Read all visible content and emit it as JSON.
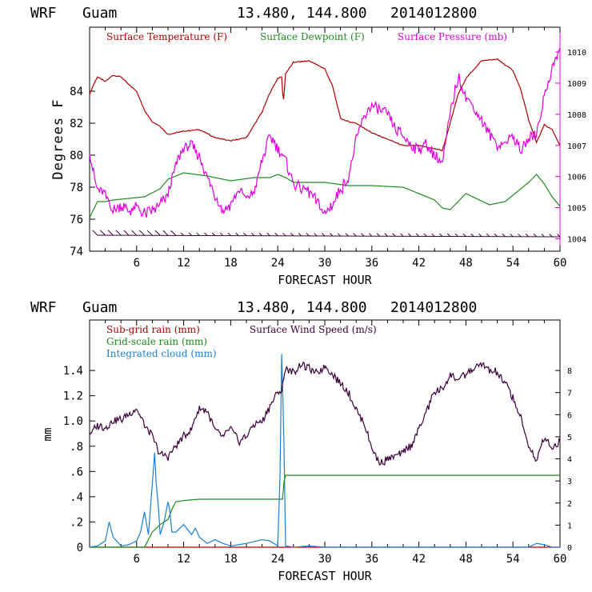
{
  "header": {
    "model": "WRF",
    "location": "Guam",
    "coords": "13.480, 144.800",
    "init_time": "2014012800"
  },
  "colors": {
    "temperature": "#b00000",
    "dewpoint": "#1e8a1e",
    "pressure": "#e000e0",
    "wind": "#3a003a",
    "subgrid_rain": "#b00000",
    "gridscale_rain": "#1e8a1e",
    "cloud": "#1a7fd0"
  },
  "chart_data": [
    {
      "type": "line",
      "xlabel": "FORECAST HOUR",
      "ylabel": "Degrees F",
      "xlim": [
        0,
        60
      ],
      "ylim": [
        74,
        88
      ],
      "y2lim": [
        1003.6,
        1010.8
      ],
      "xticks": [
        "6",
        "12",
        "18",
        "24",
        "30",
        "36",
        "42",
        "48",
        "54",
        "60"
      ],
      "yticks": [
        "74",
        "76",
        "78",
        "80",
        "82",
        "84"
      ],
      "y2ticks": [
        "1004",
        "1005",
        "1006",
        "1007",
        "1008",
        "1009",
        "1010"
      ],
      "series": [
        {
          "name": "Surface Temperature (F)",
          "axis": "left",
          "x": [
            0,
            0.5,
            1,
            2,
            3,
            4,
            5,
            6,
            7,
            8,
            9,
            10,
            12,
            14,
            16,
            18,
            20,
            22,
            23,
            24,
            24.5,
            24.7,
            25,
            26,
            28,
            30,
            31,
            32,
            33,
            34,
            36,
            38,
            40,
            42,
            44,
            45,
            46,
            47,
            48,
            50,
            52,
            54,
            55,
            56,
            57,
            58,
            59,
            60
          ],
          "values": [
            83.8,
            84.4,
            84.9,
            84.6,
            85.0,
            84.9,
            84.4,
            84.0,
            82.8,
            82.1,
            81.8,
            81.3,
            81.5,
            81.6,
            81.1,
            80.9,
            81.1,
            82.7,
            83.9,
            84.8,
            84.9,
            83.2,
            85.1,
            85.8,
            85.9,
            85.4,
            84.3,
            82.3,
            82.1,
            82.0,
            81.4,
            81.0,
            80.6,
            80.6,
            80.4,
            80.3,
            82.0,
            83.8,
            84.8,
            85.9,
            86.0,
            85.3,
            84.1,
            82.2,
            80.8,
            81.9,
            81.6,
            80.6
          ]
        },
        {
          "name": "Surface Dewpoint (F)",
          "axis": "left",
          "x": [
            0,
            0.5,
            1,
            2,
            3,
            5,
            7,
            9,
            10,
            12,
            15,
            18,
            21,
            23,
            24,
            25,
            26,
            28,
            30,
            33,
            36,
            40,
            42,
            44,
            45,
            46,
            48,
            51,
            53,
            56,
            57,
            58,
            59,
            60
          ],
          "values": [
            76.1,
            76.6,
            77.1,
            77.1,
            77.2,
            77.3,
            77.4,
            77.9,
            78.5,
            78.9,
            78.7,
            78.4,
            78.6,
            78.6,
            78.8,
            78.6,
            78.3,
            78.3,
            78.3,
            78.1,
            78.1,
            78.0,
            77.6,
            77.2,
            76.7,
            76.6,
            77.6,
            76.9,
            77.1,
            78.3,
            78.8,
            78.2,
            77.4,
            76.8
          ]
        },
        {
          "name": "Surface Pressure (mb)",
          "axis": "right",
          "x": [
            0,
            0.5,
            1,
            2,
            3,
            4,
            5,
            6,
            7,
            8,
            9,
            10,
            11,
            12,
            13,
            14,
            15,
            16,
            17,
            18,
            19,
            20,
            21,
            22,
            23,
            24,
            25,
            26,
            27,
            28,
            29,
            30,
            31,
            32,
            33,
            34,
            35,
            36,
            37,
            38,
            39,
            40,
            41,
            42,
            43,
            44,
            45,
            46,
            47,
            48,
            49,
            50,
            51,
            52,
            53,
            54,
            55,
            56,
            57,
            58,
            59,
            60
          ],
          "values": [
            1006.8,
            1006.1,
            1005.6,
            1005.4,
            1004.9,
            1005.1,
            1004.9,
            1005.0,
            1004.8,
            1004.9,
            1005.1,
            1005.4,
            1006.4,
            1006.9,
            1007.0,
            1006.6,
            1006.0,
            1005.4,
            1004.9,
            1005.1,
            1005.6,
            1005.3,
            1005.5,
            1006.5,
            1007.3,
            1006.9,
            1006.5,
            1005.8,
            1005.6,
            1005.5,
            1005.2,
            1004.8,
            1005.1,
            1005.6,
            1005.9,
            1007.2,
            1007.9,
            1008.3,
            1008.1,
            1008.0,
            1007.5,
            1007.3,
            1007.0,
            1006.9,
            1007.0,
            1006.7,
            1006.4,
            1008.0,
            1009.2,
            1008.6,
            1008.2,
            1007.8,
            1007.4,
            1007.0,
            1007.1,
            1007.3,
            1006.8,
            1007.2,
            1007.4,
            1008.6,
            1009.5,
            1010.1
          ]
        },
        {
          "name": "Surface Wind Barbs",
          "axis": "left",
          "x": [
            1,
            60
          ],
          "values": [
            75.0,
            74.9
          ]
        }
      ]
    },
    {
      "type": "line",
      "xlabel": "FORECAST HOUR",
      "ylabel": "mm",
      "xlim": [
        0,
        60
      ],
      "ylim": [
        0,
        1.8
      ],
      "y2lim": [
        0,
        10.286
      ],
      "xticks": [
        "6",
        "12",
        "18",
        "24",
        "30",
        "36",
        "42",
        "48",
        "54",
        "60"
      ],
      "yticks": [
        "0",
        ".2",
        ".4",
        ".6",
        ".8",
        "1.0",
        "1.2",
        "1.4"
      ],
      "y2ticks": [
        "0",
        "1",
        "2",
        "3",
        "4",
        "5",
        "6",
        "7",
        "8"
      ],
      "series": [
        {
          "name": "Sub-grid rain (mm)",
          "axis": "left",
          "x": [
            0,
            60
          ],
          "values": [
            0,
            0
          ]
        },
        {
          "name": "Grid-scale rain (mm)",
          "axis": "left",
          "x": [
            0,
            7,
            8,
            9,
            10,
            10.5,
            11,
            12,
            14,
            18,
            22,
            24.6,
            24.8,
            25,
            30,
            36,
            42,
            48,
            54,
            60
          ],
          "values": [
            0,
            0,
            0.12,
            0.18,
            0.22,
            0.3,
            0.36,
            0.37,
            0.38,
            0.38,
            0.38,
            0.38,
            0.52,
            0.57,
            0.57,
            0.57,
            0.57,
            0.57,
            0.57,
            0.57
          ]
        },
        {
          "name": "Integrated cloud (mm)",
          "axis": "left",
          "x": [
            0,
            1,
            2,
            2.5,
            3,
            4,
            5,
            6,
            6.5,
            7,
            7.5,
            8,
            8.3,
            8.5,
            8.8,
            9,
            9.5,
            10,
            10.2,
            10.5,
            11,
            12,
            13,
            13.5,
            14,
            15,
            16,
            17,
            18,
            20,
            22,
            23,
            24,
            24.3,
            24.5,
            24.8,
            25,
            26,
            28,
            30,
            40,
            50,
            56,
            57,
            58,
            59,
            60
          ],
          "values": [
            0,
            0.01,
            0.05,
            0.2,
            0.08,
            0.01,
            0.02,
            0.05,
            0.12,
            0.28,
            0.1,
            0.5,
            0.75,
            0.5,
            0.3,
            0.1,
            0.2,
            0.36,
            0.3,
            0.12,
            0.12,
            0.18,
            0.1,
            0.15,
            0.08,
            0.03,
            0.06,
            0.03,
            0.01,
            0.03,
            0.06,
            0.05,
            0.01,
            0.6,
            1.53,
            0.8,
            0.01,
            0.0,
            0.01,
            0.0,
            0.0,
            0.0,
            0.0,
            0.03,
            0.02,
            0.0,
            0.0
          ]
        },
        {
          "name": "Surface Wind Speed (m/s)",
          "axis": "right",
          "x": [
            0,
            1,
            2,
            3,
            4,
            5,
            6,
            7,
            8,
            9,
            10,
            11,
            12,
            13,
            14,
            15,
            16,
            17,
            18,
            19,
            20,
            21,
            22,
            23,
            24,
            24.5,
            25,
            26,
            27,
            28,
            29,
            30,
            31,
            32,
            33,
            34,
            35,
            36,
            37,
            38,
            39,
            40,
            41,
            42,
            43,
            44,
            45,
            46,
            47,
            48,
            49,
            50,
            51,
            52,
            53,
            54,
            55,
            56,
            57,
            58,
            59,
            60
          ],
          "values": [
            5.1,
            5.5,
            5.4,
            5.7,
            5.8,
            6.0,
            6.3,
            5.5,
            5.0,
            4.2,
            4.1,
            4.6,
            5.0,
            5.4,
            6.3,
            6.2,
            5.3,
            5.0,
            5.4,
            4.8,
            5.0,
            5.6,
            5.7,
            6.4,
            7.0,
            7.1,
            8.1,
            7.9,
            8.3,
            8.1,
            7.8,
            8.2,
            7.8,
            7.4,
            7.0,
            6.2,
            5.6,
            4.5,
            3.8,
            4.0,
            4.1,
            4.3,
            4.6,
            5.3,
            6.2,
            7.0,
            7.2,
            7.8,
            7.6,
            7.8,
            8.1,
            8.3,
            8.0,
            7.9,
            7.4,
            6.8,
            5.8,
            4.6,
            3.9,
            5.0,
            4.5,
            4.8
          ]
        }
      ]
    }
  ],
  "top_chart": {
    "ylabel": "Degrees F",
    "xlabel": "FORECAST HOUR",
    "legend_temp": "Surface Temperature (F)",
    "legend_dew": "Surface Dewpoint (F)",
    "legend_pres": "Surface Pressure (mb)"
  },
  "bottom_chart": {
    "ylabel": "mm",
    "xlabel": "FORECAST HOUR",
    "legend_subgrid": "Sub-grid rain (mm)",
    "legend_wind": "Surface Wind Speed (m/s)",
    "legend_grid": "Grid-scale rain (mm)",
    "legend_cloud": "Integrated cloud (mm)"
  }
}
